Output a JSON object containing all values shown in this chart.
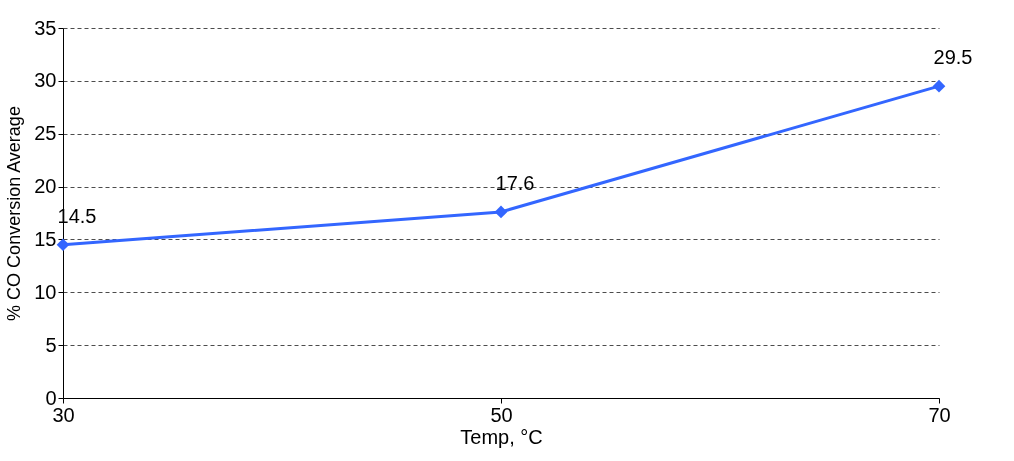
{
  "chart_data": {
    "type": "line",
    "xlabel": "Temp, °C",
    "ylabel": "% CO Conversion Average",
    "x": [
      30,
      50,
      70
    ],
    "series": [
      {
        "color": "#3366ff",
        "values": [
          14.5,
          17.6,
          29.5
        ]
      }
    ],
    "xlim": [
      30,
      70
    ],
    "xticks": [
      30,
      50,
      70
    ],
    "ylim": [
      0,
      35
    ],
    "yticks": [
      0,
      5,
      10,
      15,
      20,
      25,
      30,
      35
    ],
    "grid": "y",
    "marker": "diamond",
    "line_style": "solid",
    "data_labels": true
  }
}
